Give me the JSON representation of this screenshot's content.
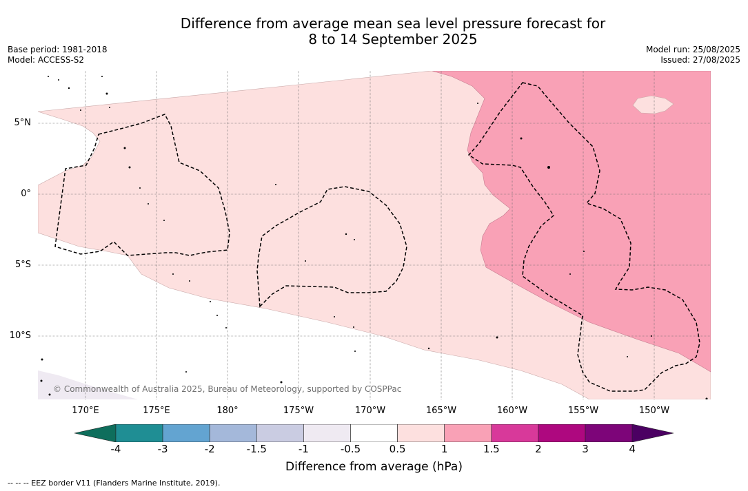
{
  "title_line1": "Difference from average mean sea level pressure forecast for",
  "title_line2": "8 to 14 September 2025",
  "meta_left": {
    "base_period": "Base period: 1981-2018",
    "model": "Model: ACCESS-S2"
  },
  "meta_right": {
    "model_run": "Model run: 25/08/2025",
    "issued": "Issued: 27/08/2025"
  },
  "lat_labels": [
    "5°N",
    "0°",
    "5°S",
    "10°S"
  ],
  "lon_labels": [
    "170°E",
    "175°E",
    "180°",
    "175°W",
    "170°W",
    "165°W",
    "160°W",
    "155°W",
    "150°W"
  ],
  "copyright": "© Commonwealth of Australia 2025, Bureau of Meteorology, supported by COSPPac",
  "colorbar": {
    "title": "Difference from average (hPa)",
    "ticks": [
      "-4",
      "-3",
      "-2",
      "-1.5",
      "-1",
      "-0.5",
      "0.5",
      "1",
      "1.5",
      "2",
      "3",
      "4"
    ],
    "colors": [
      "#1f8e94",
      "#63a4d1",
      "#a4b8da",
      "#cacce2",
      "#efeaf2",
      "#ffffff",
      "#fde0df",
      "#f9a1b6",
      "#d8399a",
      "#ae087f",
      "#7d0579"
    ],
    "under_color": "#0e6e5c",
    "over_color": "#4b0062"
  },
  "map_colors": {
    "band_0_5_to_1": "#fde0df",
    "band_1_to_1_5": "#f9a1b6",
    "band_neg_1_to_neg_0_5": "#efeaf2"
  },
  "footer": "--  --  -- EEZ border V11 (Flanders Marine Institute, 2019)."
}
